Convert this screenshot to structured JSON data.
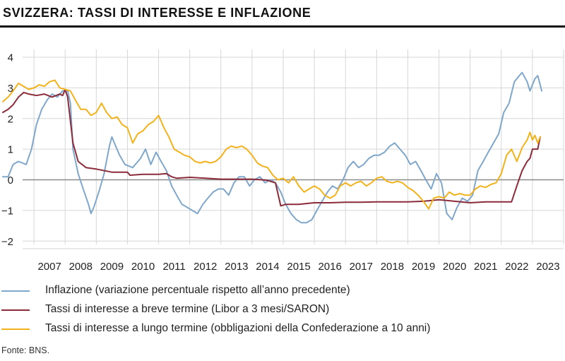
{
  "title": "SVIZZERA: TASSI DI INTERESSE E INFLAZIONE",
  "source": "Fonte: BNS.",
  "chart_data": {
    "type": "line",
    "x_tick_labels": [
      "2007",
      "2008",
      "2009",
      "2010",
      "2011",
      "2012",
      "2013",
      "2014",
      "2015",
      "2016",
      "2017",
      "2018",
      "2019",
      "2020",
      "2021",
      "2022",
      "2023"
    ],
    "y_ticks": [
      4,
      3,
      2,
      1,
      0,
      -1,
      -2
    ],
    "xlim": [
      2006.0,
      2024.0
    ],
    "ylim": [
      -2.2,
      4.4
    ],
    "grid": true,
    "legend_position": "bottom",
    "series": [
      {
        "name": "Inflazione (variazione percentuale rispetto all’anno precedente)",
        "color": "#7fa7cb",
        "points": [
          [
            2006.0,
            0.1
          ],
          [
            2006.17,
            0.1
          ],
          [
            2006.33,
            0.5
          ],
          [
            2006.5,
            0.6
          ],
          [
            2006.75,
            0.5
          ],
          [
            2006.92,
            1.0
          ],
          [
            2007.08,
            1.8
          ],
          [
            2007.25,
            2.3
          ],
          [
            2007.42,
            2.6
          ],
          [
            2007.58,
            2.8
          ],
          [
            2007.75,
            2.7
          ],
          [
            2007.92,
            2.9
          ],
          [
            2008.08,
            2.9
          ],
          [
            2008.17,
            2.5
          ],
          [
            2008.25,
            1.0
          ],
          [
            2008.42,
            0.2
          ],
          [
            2008.58,
            -0.3
          ],
          [
            2008.75,
            -0.8
          ],
          [
            2008.83,
            -1.1
          ],
          [
            2008.92,
            -0.9
          ],
          [
            2009.08,
            -0.4
          ],
          [
            2009.25,
            0.2
          ],
          [
            2009.42,
            1.1
          ],
          [
            2009.5,
            1.4
          ],
          [
            2009.58,
            1.2
          ],
          [
            2009.75,
            0.8
          ],
          [
            2009.92,
            0.5
          ],
          [
            2010.17,
            0.4
          ],
          [
            2010.42,
            0.7
          ],
          [
            2010.58,
            1.0
          ],
          [
            2010.75,
            0.5
          ],
          [
            2010.92,
            0.9
          ],
          [
            2011.08,
            0.6
          ],
          [
            2011.25,
            0.3
          ],
          [
            2011.42,
            -0.2
          ],
          [
            2011.58,
            -0.5
          ],
          [
            2011.75,
            -0.8
          ],
          [
            2011.92,
            -0.9
          ],
          [
            2012.08,
            -1.0
          ],
          [
            2012.25,
            -1.1
          ],
          [
            2012.42,
            -0.8
          ],
          [
            2012.58,
            -0.6
          ],
          [
            2012.75,
            -0.4
          ],
          [
            2012.92,
            -0.3
          ],
          [
            2013.08,
            -0.3
          ],
          [
            2013.25,
            -0.5
          ],
          [
            2013.42,
            -0.1
          ],
          [
            2013.58,
            0.1
          ],
          [
            2013.75,
            0.1
          ],
          [
            2013.92,
            -0.2
          ],
          [
            2014.08,
            0.0
          ],
          [
            2014.25,
            0.1
          ],
          [
            2014.42,
            -0.1
          ],
          [
            2014.58,
            0.0
          ],
          [
            2014.75,
            -0.1
          ],
          [
            2014.92,
            -0.4
          ],
          [
            2015.08,
            -0.8
          ],
          [
            2015.25,
            -1.1
          ],
          [
            2015.42,
            -1.3
          ],
          [
            2015.58,
            -1.4
          ],
          [
            2015.75,
            -1.4
          ],
          [
            2015.92,
            -1.3
          ],
          [
            2016.08,
            -1.0
          ],
          [
            2016.25,
            -0.7
          ],
          [
            2016.42,
            -0.4
          ],
          [
            2016.58,
            -0.2
          ],
          [
            2016.75,
            -0.3
          ],
          [
            2016.92,
            0.0
          ],
          [
            2017.08,
            0.4
          ],
          [
            2017.25,
            0.6
          ],
          [
            2017.42,
            0.4
          ],
          [
            2017.58,
            0.5
          ],
          [
            2017.75,
            0.7
          ],
          [
            2017.92,
            0.8
          ],
          [
            2018.08,
            0.8
          ],
          [
            2018.25,
            0.9
          ],
          [
            2018.42,
            1.1
          ],
          [
            2018.58,
            1.2
          ],
          [
            2018.75,
            1.0
          ],
          [
            2018.92,
            0.8
          ],
          [
            2019.08,
            0.5
          ],
          [
            2019.25,
            0.6
          ],
          [
            2019.42,
            0.3
          ],
          [
            2019.58,
            0.0
          ],
          [
            2019.75,
            -0.3
          ],
          [
            2019.92,
            0.2
          ],
          [
            2020.08,
            -0.1
          ],
          [
            2020.25,
            -1.1
          ],
          [
            2020.42,
            -1.3
          ],
          [
            2020.58,
            -0.9
          ],
          [
            2020.75,
            -0.6
          ],
          [
            2020.92,
            -0.7
          ],
          [
            2021.08,
            -0.5
          ],
          [
            2021.25,
            0.3
          ],
          [
            2021.42,
            0.6
          ],
          [
            2021.58,
            0.9
          ],
          [
            2021.75,
            1.2
          ],
          [
            2021.92,
            1.5
          ],
          [
            2022.08,
            2.2
          ],
          [
            2022.25,
            2.5
          ],
          [
            2022.42,
            3.2
          ],
          [
            2022.58,
            3.4
          ],
          [
            2022.67,
            3.5
          ],
          [
            2022.83,
            3.2
          ],
          [
            2022.92,
            2.9
          ],
          [
            2023.08,
            3.3
          ],
          [
            2023.17,
            3.4
          ],
          [
            2023.3,
            2.9
          ]
        ]
      },
      {
        "name": "Tassi di interesse a breve termine (Libor a 3 mesi/SARON)",
        "color": "#8b2b3a",
        "points": [
          [
            2006.0,
            2.2
          ],
          [
            2006.17,
            2.3
          ],
          [
            2006.33,
            2.45
          ],
          [
            2006.5,
            2.7
          ],
          [
            2006.67,
            2.85
          ],
          [
            2006.83,
            2.8
          ],
          [
            2007.08,
            2.75
          ],
          [
            2007.33,
            2.8
          ],
          [
            2007.58,
            2.7
          ],
          [
            2007.83,
            2.8
          ],
          [
            2007.92,
            2.75
          ],
          [
            2008.0,
            2.95
          ],
          [
            2008.08,
            2.7
          ],
          [
            2008.25,
            1.2
          ],
          [
            2008.42,
            0.6
          ],
          [
            2008.67,
            0.4
          ],
          [
            2009.0,
            0.35
          ],
          [
            2009.5,
            0.25
          ],
          [
            2010.0,
            0.25
          ],
          [
            2010.08,
            0.15
          ],
          [
            2010.5,
            0.18
          ],
          [
            2011.0,
            0.18
          ],
          [
            2011.25,
            0.2
          ],
          [
            2011.42,
            0.1
          ],
          [
            2011.58,
            0.05
          ],
          [
            2012.0,
            0.08
          ],
          [
            2012.5,
            0.05
          ],
          [
            2013.0,
            0.02
          ],
          [
            2013.5,
            0.02
          ],
          [
            2014.0,
            0.02
          ],
          [
            2014.33,
            0.0
          ],
          [
            2014.5,
            -0.02
          ],
          [
            2014.75,
            -0.1
          ],
          [
            2014.92,
            -0.85
          ],
          [
            2015.08,
            -0.8
          ],
          [
            2015.5,
            -0.8
          ],
          [
            2016.0,
            -0.75
          ],
          [
            2016.5,
            -0.75
          ],
          [
            2017.0,
            -0.73
          ],
          [
            2017.5,
            -0.73
          ],
          [
            2018.0,
            -0.72
          ],
          [
            2018.5,
            -0.72
          ],
          [
            2019.0,
            -0.72
          ],
          [
            2019.5,
            -0.7
          ],
          [
            2020.0,
            -0.65
          ],
          [
            2020.5,
            -0.7
          ],
          [
            2021.0,
            -0.75
          ],
          [
            2021.5,
            -0.72
          ],
          [
            2022.0,
            -0.72
          ],
          [
            2022.33,
            -0.72
          ],
          [
            2022.5,
            -0.2
          ],
          [
            2022.67,
            0.3
          ],
          [
            2022.83,
            0.6
          ],
          [
            2022.92,
            0.7
          ],
          [
            2023.0,
            1.0
          ],
          [
            2023.17,
            1.0
          ],
          [
            2023.25,
            1.4
          ]
        ]
      },
      {
        "name": "Tassi di interesse a lungo termine (obbligazioni della Confederazione a 10 anni)",
        "color": "#f2b21b",
        "points": [
          [
            2006.0,
            2.55
          ],
          [
            2006.17,
            2.7
          ],
          [
            2006.33,
            2.9
          ],
          [
            2006.5,
            3.15
          ],
          [
            2006.67,
            3.05
          ],
          [
            2006.83,
            2.95
          ],
          [
            2007.0,
            3.0
          ],
          [
            2007.17,
            3.1
          ],
          [
            2007.33,
            3.05
          ],
          [
            2007.5,
            3.2
          ],
          [
            2007.67,
            3.25
          ],
          [
            2007.83,
            3.0
          ],
          [
            2008.0,
            2.95
          ],
          [
            2008.17,
            2.9
          ],
          [
            2008.33,
            2.6
          ],
          [
            2008.5,
            2.3
          ],
          [
            2008.67,
            2.3
          ],
          [
            2008.83,
            2.1
          ],
          [
            2009.0,
            2.2
          ],
          [
            2009.17,
            2.5
          ],
          [
            2009.33,
            2.2
          ],
          [
            2009.5,
            2.0
          ],
          [
            2009.67,
            2.05
          ],
          [
            2009.83,
            1.8
          ],
          [
            2010.0,
            1.7
          ],
          [
            2010.17,
            1.2
          ],
          [
            2010.33,
            1.5
          ],
          [
            2010.5,
            1.6
          ],
          [
            2010.67,
            1.8
          ],
          [
            2010.83,
            1.9
          ],
          [
            2011.0,
            2.1
          ],
          [
            2011.17,
            1.7
          ],
          [
            2011.33,
            1.4
          ],
          [
            2011.5,
            1.0
          ],
          [
            2011.67,
            0.9
          ],
          [
            2011.83,
            0.8
          ],
          [
            2012.0,
            0.75
          ],
          [
            2012.17,
            0.6
          ],
          [
            2012.33,
            0.55
          ],
          [
            2012.5,
            0.6
          ],
          [
            2012.67,
            0.55
          ],
          [
            2012.83,
            0.6
          ],
          [
            2013.0,
            0.75
          ],
          [
            2013.17,
            1.0
          ],
          [
            2013.33,
            1.1
          ],
          [
            2013.5,
            1.05
          ],
          [
            2013.67,
            1.1
          ],
          [
            2013.83,
            1.0
          ],
          [
            2014.0,
            0.8
          ],
          [
            2014.17,
            0.55
          ],
          [
            2014.33,
            0.45
          ],
          [
            2014.5,
            0.4
          ],
          [
            2014.67,
            0.15
          ],
          [
            2014.83,
            0.0
          ],
          [
            2015.0,
            0.05
          ],
          [
            2015.17,
            -0.1
          ],
          [
            2015.33,
            0.1
          ],
          [
            2015.5,
            -0.2
          ],
          [
            2015.67,
            -0.4
          ],
          [
            2015.83,
            -0.3
          ],
          [
            2016.0,
            -0.2
          ],
          [
            2016.17,
            -0.3
          ],
          [
            2016.33,
            -0.5
          ],
          [
            2016.5,
            -0.6
          ],
          [
            2016.67,
            -0.5
          ],
          [
            2016.83,
            -0.2
          ],
          [
            2017.0,
            -0.1
          ],
          [
            2017.17,
            -0.2
          ],
          [
            2017.33,
            -0.1
          ],
          [
            2017.5,
            -0.05
          ],
          [
            2017.67,
            -0.2
          ],
          [
            2017.83,
            -0.1
          ],
          [
            2018.0,
            0.05
          ],
          [
            2018.17,
            0.1
          ],
          [
            2018.33,
            -0.05
          ],
          [
            2018.5,
            -0.1
          ],
          [
            2018.67,
            -0.05
          ],
          [
            2018.83,
            -0.1
          ],
          [
            2019.0,
            -0.25
          ],
          [
            2019.17,
            -0.35
          ],
          [
            2019.33,
            -0.5
          ],
          [
            2019.5,
            -0.7
          ],
          [
            2019.67,
            -0.95
          ],
          [
            2019.83,
            -0.6
          ],
          [
            2020.0,
            -0.55
          ],
          [
            2020.17,
            -0.6
          ],
          [
            2020.33,
            -0.4
          ],
          [
            2020.5,
            -0.5
          ],
          [
            2020.67,
            -0.45
          ],
          [
            2020.83,
            -0.5
          ],
          [
            2021.0,
            -0.5
          ],
          [
            2021.17,
            -0.3
          ],
          [
            2021.33,
            -0.2
          ],
          [
            2021.5,
            -0.25
          ],
          [
            2021.67,
            -0.15
          ],
          [
            2021.83,
            -0.1
          ],
          [
            2022.0,
            0.2
          ],
          [
            2022.17,
            0.8
          ],
          [
            2022.33,
            1.0
          ],
          [
            2022.5,
            0.6
          ],
          [
            2022.67,
            1.05
          ],
          [
            2022.83,
            1.3
          ],
          [
            2022.92,
            1.55
          ],
          [
            2023.0,
            1.3
          ],
          [
            2023.08,
            1.45
          ],
          [
            2023.17,
            1.2
          ],
          [
            2023.25,
            1.4
          ]
        ]
      }
    ]
  }
}
